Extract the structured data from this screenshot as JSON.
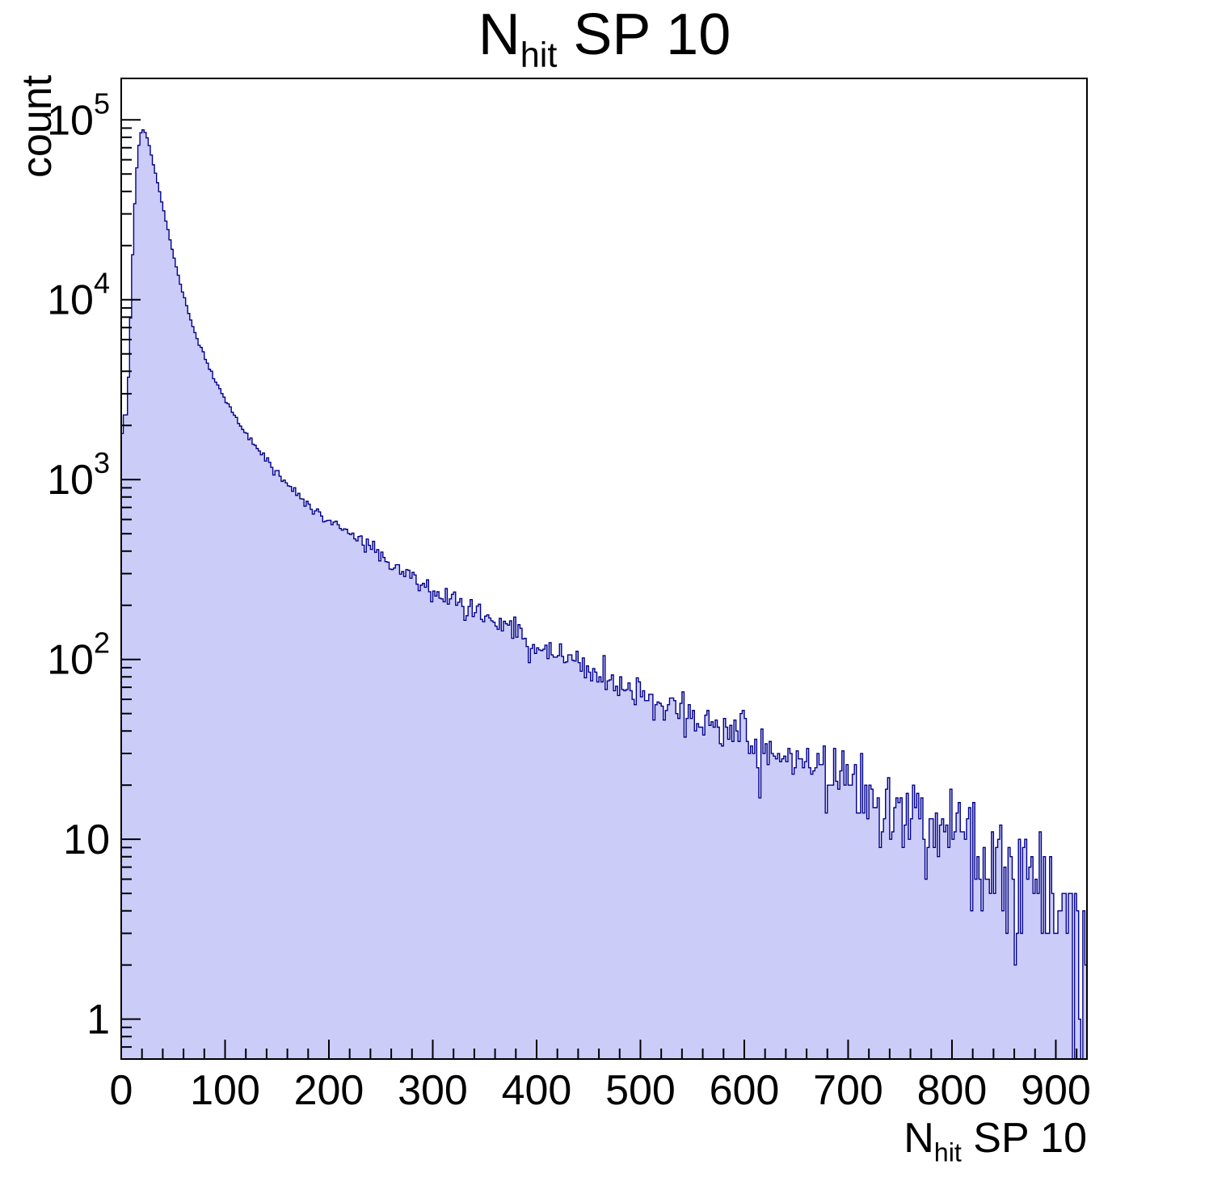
{
  "page": {
    "background": "#ffffff"
  },
  "chart_data": {
    "type": "bar",
    "subtype": "histogram-log-y",
    "title": "N_hit SP 10",
    "title_parts": {
      "main": "N",
      "sub": "hit",
      "rest": " SP 10"
    },
    "xlabel": "N_hit SP 10",
    "xlabel_parts": {
      "main": "N",
      "sub": "hit",
      "rest": " SP 10"
    },
    "ylabel": "count",
    "x_axis": {
      "min": 0,
      "max": 930,
      "ticks": [
        0,
        100,
        200,
        300,
        400,
        500,
        600,
        700,
        800,
        900
      ],
      "minor_step": 20
    },
    "y_axis": {
      "scale": "log",
      "min": 0.6,
      "max": 170000,
      "ticks": [
        1,
        10,
        100,
        1000,
        10000,
        100000
      ]
    },
    "bin_width": 2,
    "colors": {
      "fill": "#ccccf9",
      "line": "#00008b",
      "frame": "#000000"
    },
    "envelope": [
      [
        0,
        1400
      ],
      [
        2,
        2600
      ],
      [
        4,
        2000
      ],
      [
        6,
        2600
      ],
      [
        8,
        5200
      ],
      [
        10,
        12000
      ],
      [
        12,
        26000
      ],
      [
        14,
        45000
      ],
      [
        16,
        65000
      ],
      [
        18,
        80000
      ],
      [
        20,
        88000
      ],
      [
        22,
        88000
      ],
      [
        24,
        83000
      ],
      [
        26,
        76000
      ],
      [
        30,
        60000
      ],
      [
        36,
        42000
      ],
      [
        44,
        26000
      ],
      [
        52,
        16000
      ],
      [
        60,
        10500
      ],
      [
        70,
        6800
      ],
      [
        80,
        4800
      ],
      [
        90,
        3600
      ],
      [
        100,
        2800
      ],
      [
        110,
        2250
      ],
      [
        120,
        1850
      ],
      [
        130,
        1500
      ],
      [
        140,
        1280
      ],
      [
        150,
        1100
      ],
      [
        160,
        950
      ],
      [
        170,
        840
      ],
      [
        180,
        750
      ],
      [
        190,
        660
      ],
      [
        200,
        580
      ],
      [
        210,
        540
      ],
      [
        220,
        500
      ],
      [
        230,
        460
      ],
      [
        240,
        430
      ],
      [
        250,
        380
      ],
      [
        260,
        340
      ],
      [
        270,
        310
      ],
      [
        280,
        290
      ],
      [
        290,
        260
      ],
      [
        300,
        235
      ],
      [
        310,
        225
      ],
      [
        320,
        215
      ],
      [
        330,
        200
      ],
      [
        340,
        185
      ],
      [
        350,
        170
      ],
      [
        360,
        160
      ],
      [
        370,
        150
      ],
      [
        380,
        140
      ],
      [
        390,
        130
      ],
      [
        400,
        120
      ],
      [
        420,
        108
      ],
      [
        440,
        96
      ],
      [
        460,
        84
      ],
      [
        480,
        72
      ],
      [
        500,
        62
      ],
      [
        520,
        56
      ],
      [
        540,
        50
      ],
      [
        560,
        45
      ],
      [
        580,
        41
      ],
      [
        600,
        36
      ],
      [
        620,
        32
      ],
      [
        640,
        28
      ],
      [
        660,
        25
      ],
      [
        680,
        22
      ],
      [
        700,
        20
      ],
      [
        720,
        18
      ],
      [
        740,
        16
      ],
      [
        760,
        14
      ],
      [
        780,
        12
      ],
      [
        800,
        11
      ],
      [
        820,
        9.5
      ],
      [
        840,
        8
      ],
      [
        860,
        6.5
      ],
      [
        880,
        5.5
      ],
      [
        900,
        4.5
      ],
      [
        915,
        3.5
      ],
      [
        930,
        3
      ]
    ]
  }
}
